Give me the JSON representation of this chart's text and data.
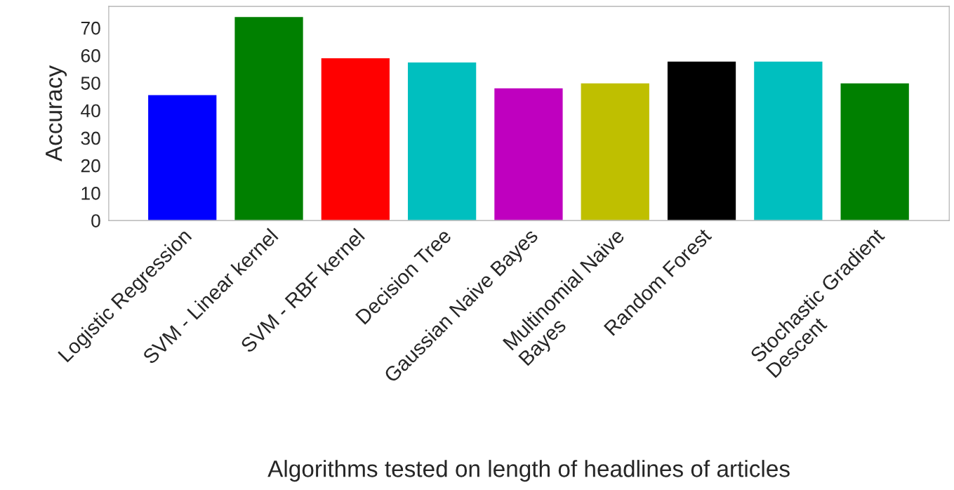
{
  "chart_data": {
    "type": "bar",
    "xlabel": "Algorithms tested on length of headlines of articles",
    "ylabel": "Accuracy",
    "categories": [
      "Logistic Regression",
      "SVM - Linear kernel",
      "SVM - RBF kernel",
      "Decision Tree",
      "Gaussian Naive Bayes",
      "Multinomial Naive\nBayes",
      "Random Forest",
      null,
      "Stochastic Gradient\nDescent"
    ],
    "values": [
      45.7,
      74.1,
      59.1,
      57.6,
      48.2,
      50.0,
      57.9,
      57.9,
      50.0
    ],
    "colors": [
      "#0000ff",
      "#008000",
      "#ff0000",
      "#00bfbf",
      "#bf00bf",
      "#bfbf00",
      "#000000",
      "#00bfbf",
      "#008000"
    ],
    "ylim": [
      0,
      77.8
    ],
    "yticks": [
      0,
      10,
      20,
      30,
      40,
      50,
      60,
      70
    ],
    "grid": false,
    "legend": false
  }
}
